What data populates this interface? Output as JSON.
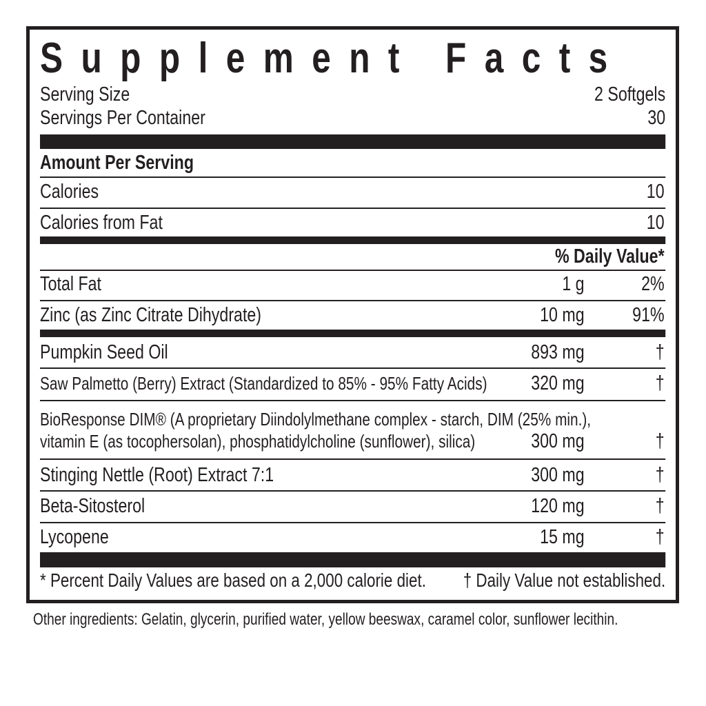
{
  "title": "Supplement Facts",
  "serving_size": {
    "label": "Serving Size",
    "value": "2 Softgels"
  },
  "servings_per_container": {
    "label": "Servings Per Container",
    "value": "30"
  },
  "amount_header": "Amount Per Serving",
  "calories": {
    "label": "Calories",
    "value": "10"
  },
  "calories_fat": {
    "label": "Calories from Fat",
    "value": "10"
  },
  "dv_header": "% Daily Value*",
  "nutrients": [
    {
      "name": "Total Fat",
      "amount": "1 g",
      "dv": "2%"
    },
    {
      "name": "Zinc (as Zinc Citrate Dihydrate)",
      "amount": "10 mg",
      "dv": "91%"
    }
  ],
  "ingredients": [
    {
      "name": "Pumpkin Seed Oil",
      "amount": "893 mg",
      "dv": "†"
    },
    {
      "name": "Saw Palmetto (Berry) Extract (Standardized to 85% - 95% Fatty Acids)",
      "amount": "320 mg",
      "dv": "†"
    },
    {
      "name": "BioResponse DIM® (A proprietary Diindolylmethane complex - starch, DIM (25% min.),",
      "name_line2": "vitamin E (as tocophersolan), phosphatidylcholine (sunflower), silica)",
      "amount": "300 mg",
      "dv": "†"
    },
    {
      "name": "Stinging Nettle (Root) Extract 7:1",
      "amount": "300 mg",
      "dv": "†"
    },
    {
      "name": "Beta-Sitosterol",
      "amount": "120 mg",
      "dv": "†"
    },
    {
      "name": "Lycopene",
      "amount": "15 mg",
      "dv": "†"
    }
  ],
  "footnote_left": "* Percent Daily Values are based on a 2,000 calorie diet.",
  "footnote_right": "† Daily Value not established.",
  "other_ingredients": "Other ingredients: Gelatin, glycerin, purified water, yellow beeswax, caramel color, sunflower lecithin."
}
